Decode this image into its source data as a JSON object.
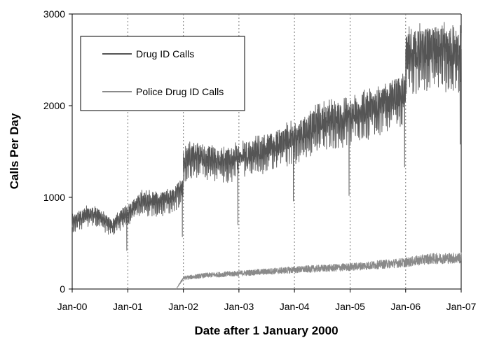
{
  "chart_data": {
    "type": "line",
    "title": "",
    "xlabel": "Date after 1 January 2000",
    "ylabel": "Calls Per Day",
    "x_ticks": [
      "Jan-00",
      "Jan-01",
      "Jan-02",
      "Jan-03",
      "Jan-04",
      "Jan-05",
      "Jan-06",
      "Jan-07"
    ],
    "xlim": [
      "2000-01-01",
      "2007-01-01"
    ],
    "y_ticks": [
      "0",
      "1000",
      "2000",
      "3000"
    ],
    "ylim": [
      0,
      3000
    ],
    "grid": "dotted vertical lines at each year",
    "legend_position": "top-left inside plot",
    "series": [
      {
        "name": "Drug ID Calls",
        "color": "#555555",
        "points": [
          {
            "x": "2000-01-01",
            "y": 720
          },
          {
            "x": "2000-03-15",
            "y": 800
          },
          {
            "x": "2000-06-01",
            "y": 820
          },
          {
            "x": "2000-09-15",
            "y": 690
          },
          {
            "x": "2001-01-01",
            "y": 840
          },
          {
            "x": "2001-04-01",
            "y": 960
          },
          {
            "x": "2001-08-01",
            "y": 950
          },
          {
            "x": "2001-11-01",
            "y": 1000
          },
          {
            "x": "2001-12-31",
            "y": 1150
          },
          {
            "x": "2002-01-01",
            "y": 1380
          },
          {
            "x": "2002-03-01",
            "y": 1470
          },
          {
            "x": "2002-06-01",
            "y": 1420
          },
          {
            "x": "2002-10-01",
            "y": 1380
          },
          {
            "x": "2003-01-01",
            "y": 1440
          },
          {
            "x": "2003-07-01",
            "y": 1520
          },
          {
            "x": "2004-01-01",
            "y": 1640
          },
          {
            "x": "2004-07-01",
            "y": 1820
          },
          {
            "x": "2005-01-01",
            "y": 1870
          },
          {
            "x": "2005-07-01",
            "y": 2000
          },
          {
            "x": "2005-12-31",
            "y": 2130
          },
          {
            "x": "2006-01-01",
            "y": 2540
          },
          {
            "x": "2006-07-01",
            "y": 2600
          },
          {
            "x": "2007-01-01",
            "y": 2550
          }
        ]
      },
      {
        "name": "Police Drug ID Calls",
        "color": "#8a8a8a",
        "points": [
          {
            "x": "2001-11-15",
            "y": 0
          },
          {
            "x": "2002-01-01",
            "y": 120
          },
          {
            "x": "2002-06-01",
            "y": 150
          },
          {
            "x": "2003-01-01",
            "y": 170
          },
          {
            "x": "2004-01-01",
            "y": 210
          },
          {
            "x": "2005-01-01",
            "y": 240
          },
          {
            "x": "2006-01-01",
            "y": 290
          },
          {
            "x": "2006-06-01",
            "y": 330
          },
          {
            "x": "2007-01-01",
            "y": 340
          }
        ]
      }
    ],
    "dips": [
      {
        "x": "2000-12-25",
        "y": 420
      },
      {
        "x": "2001-12-25",
        "y": 570
      },
      {
        "x": "2002-12-25",
        "y": 700
      },
      {
        "x": "2003-12-25",
        "y": 960
      },
      {
        "x": "2004-12-25",
        "y": 1020
      },
      {
        "x": "2005-12-25",
        "y": 1330
      },
      {
        "x": "2006-12-25",
        "y": 1580
      }
    ]
  }
}
